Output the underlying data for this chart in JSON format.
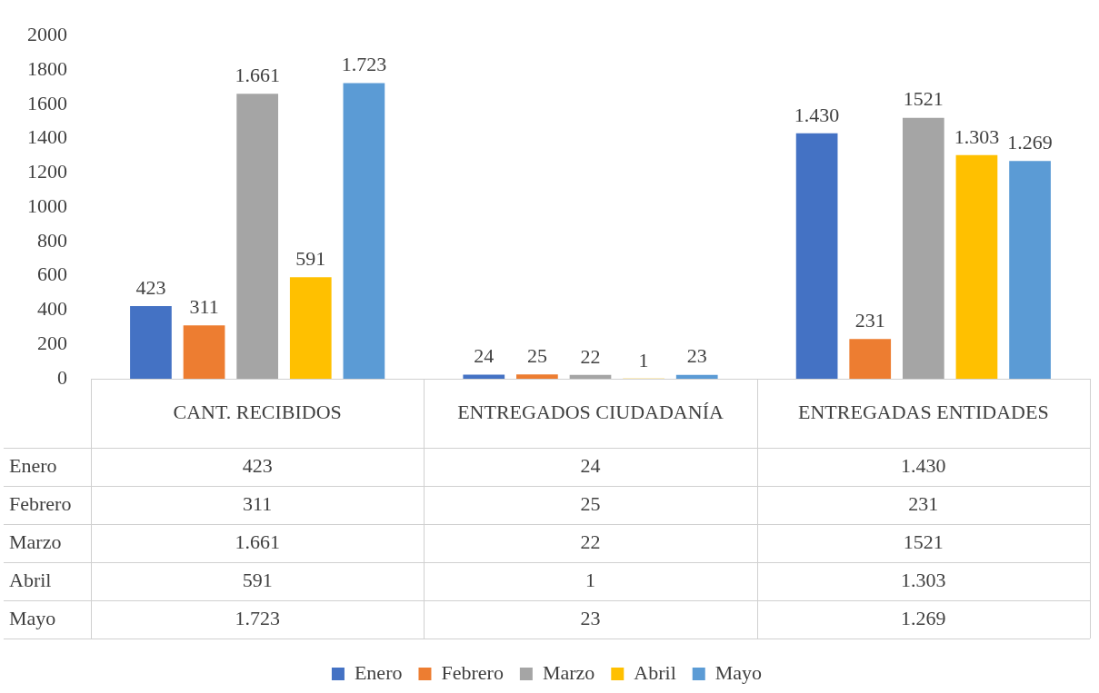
{
  "chart_data": {
    "type": "bar",
    "categories": [
      "CANT. RECIBIDOS",
      "ENTREGADOS CIUDADANÍA",
      "ENTREGADAS ENTIDADES"
    ],
    "series": [
      {
        "name": "Enero",
        "color": "#4472c4",
        "values": [
          423,
          24,
          1430
        ],
        "value_labels": [
          "423",
          "24",
          "1.430"
        ]
      },
      {
        "name": "Febrero",
        "color": "#ed7d31",
        "values": [
          311,
          25,
          231
        ],
        "value_labels": [
          "311",
          "25",
          "231"
        ]
      },
      {
        "name": "Marzo",
        "color": "#a5a5a5",
        "values": [
          1661,
          22,
          1521
        ],
        "value_labels": [
          "1.661",
          "22",
          "1521"
        ]
      },
      {
        "name": "Abril",
        "color": "#ffc000",
        "values": [
          591,
          1,
          1303
        ],
        "value_labels": [
          "591",
          "1",
          "1.303"
        ]
      },
      {
        "name": "Mayo",
        "color": "#5b9bd5",
        "values": [
          1723,
          23,
          1269
        ],
        "value_labels": [
          "1.723",
          "23",
          "1.269"
        ]
      }
    ],
    "ylim": [
      0,
      2000
    ],
    "yticks": [
      0,
      200,
      400,
      600,
      800,
      1000,
      1200,
      1400,
      1600,
      1800,
      2000
    ],
    "grid": false,
    "legend": "bottom"
  }
}
